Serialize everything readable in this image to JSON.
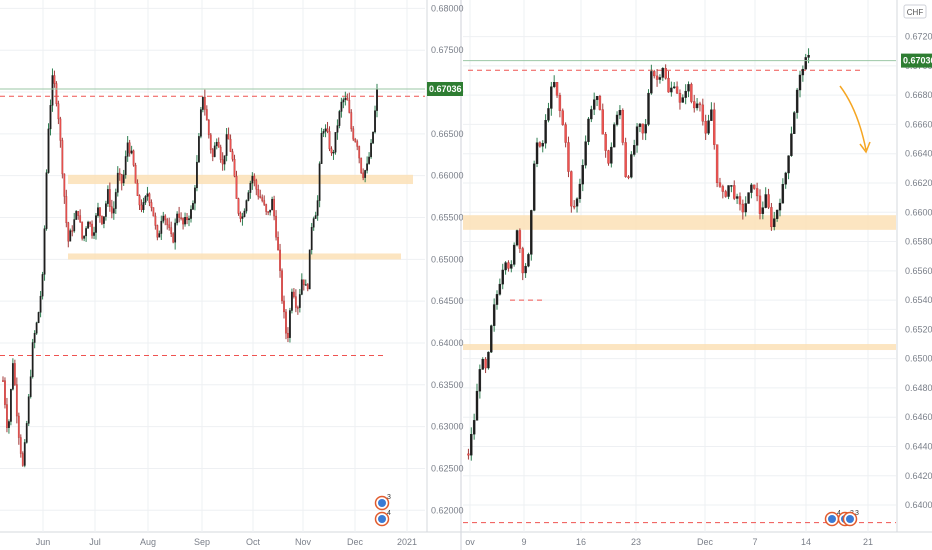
{
  "currency_label": "CHF",
  "icon_names": [
    "event-flag-icon"
  ],
  "event_counts": {
    "left": [
      "3",
      "4"
    ],
    "right": [
      "4",
      "3",
      "3"
    ]
  },
  "colors": {
    "up": "#26a69a",
    "down": "#ef5350",
    "body_dark": "#1e1e1e",
    "zone": "#fbe0b6",
    "dashed": "#ef5350",
    "last": "#2e7d32",
    "arrow": "#f5a623"
  },
  "chart_data": [
    {
      "type": "candlestick",
      "panel": "left",
      "currency": "",
      "last_price": "0.67036",
      "ylim": [
        0.618,
        0.681
      ],
      "y_ticks": [
        "0.68000",
        "0.67500",
        "0.67000",
        "0.66500",
        "0.66000",
        "0.65500",
        "0.65000",
        "0.64500",
        "0.64000",
        "0.63500",
        "0.63000",
        "0.62500",
        "0.62000"
      ],
      "x_ticks": [
        "Jun",
        "Jul",
        "Aug",
        "Sep",
        "Oct",
        "Nov",
        "Dec",
        "2021"
      ],
      "zones": [
        [
          0.659,
          0.6601
        ],
        [
          0.65,
          0.6507
        ]
      ],
      "dashed_levels": [
        0.6695,
        0.6385
      ],
      "series_path": [
        [
          0,
          0.6355
        ],
        [
          5,
          0.629
        ],
        [
          10,
          0.638
        ],
        [
          15,
          0.63
        ],
        [
          20,
          0.625
        ],
        [
          25,
          0.632
        ],
        [
          30,
          0.64
        ],
        [
          35,
          0.643
        ],
        [
          40,
          0.648
        ],
        [
          45,
          0.665
        ],
        [
          50,
          0.672
        ],
        [
          55,
          0.668
        ],
        [
          60,
          0.66
        ],
        [
          65,
          0.652
        ],
        [
          70,
          0.654
        ],
        [
          75,
          0.656
        ],
        [
          80,
          0.652
        ],
        [
          85,
          0.655
        ],
        [
          90,
          0.653
        ],
        [
          95,
          0.656
        ],
        [
          100,
          0.6545
        ],
        [
          105,
          0.658
        ],
        [
          110,
          0.655
        ],
        [
          115,
          0.66
        ],
        [
          120,
          0.659
        ],
        [
          125,
          0.664
        ],
        [
          130,
          0.662
        ],
        [
          135,
          0.657
        ],
        [
          140,
          0.656
        ],
        [
          145,
          0.658
        ],
        [
          150,
          0.656
        ],
        [
          155,
          0.652
        ],
        [
          160,
          0.656
        ],
        [
          165,
          0.654
        ],
        [
          170,
          0.652
        ],
        [
          175,
          0.656
        ],
        [
          180,
          0.654
        ],
        [
          185,
          0.655
        ],
        [
          190,
          0.656
        ],
        [
          195,
          0.662
        ],
        [
          200,
          0.67
        ],
        [
          205,
          0.666
        ],
        [
          210,
          0.662
        ],
        [
          215,
          0.665
        ],
        [
          220,
          0.661
        ],
        [
          225,
          0.665
        ],
        [
          230,
          0.662
        ],
        [
          235,
          0.656
        ],
        [
          240,
          0.655
        ],
        [
          245,
          0.658
        ],
        [
          250,
          0.66
        ],
        [
          255,
          0.658
        ],
        [
          260,
          0.657
        ],
        [
          265,
          0.655
        ],
        [
          270,
          0.657
        ],
        [
          275,
          0.652
        ],
        [
          280,
          0.645
        ],
        [
          285,
          0.64
        ],
        [
          290,
          0.647
        ],
        [
          295,
          0.644
        ],
        [
          300,
          0.648
        ],
        [
          305,
          0.646
        ],
        [
          310,
          0.655
        ],
        [
          315,
          0.656
        ],
        [
          320,
          0.666
        ],
        [
          325,
          0.665
        ],
        [
          330,
          0.662
        ],
        [
          335,
          0.666
        ],
        [
          340,
          0.669
        ],
        [
          345,
          0.669
        ],
        [
          350,
          0.665
        ],
        [
          355,
          0.664
        ],
        [
          360,
          0.66
        ],
        [
          365,
          0.661
        ],
        [
          370,
          0.664
        ],
        [
          375,
          0.67
        ]
      ]
    },
    {
      "type": "candlestick",
      "panel": "right",
      "currency": "CHF",
      "last_price": "0.67036",
      "ylim": [
        0.6385,
        0.6745
      ],
      "y_ticks": [
        "0.67200",
        "0.67000",
        "0.66800",
        "0.66600",
        "0.66400",
        "0.66200",
        "0.66000",
        "0.65800",
        "0.65600",
        "0.65400",
        "0.65200",
        "0.65000",
        "0.64800",
        "0.64600",
        "0.64400",
        "0.64200",
        "0.64000"
      ],
      "x_ticks": [
        "ov",
        "9",
        "16",
        "23",
        "Dec",
        "7",
        "14",
        "21"
      ],
      "zones": [
        [
          0.6588,
          0.6598
        ],
        [
          0.6507,
          0.651
        ]
      ],
      "dashed_levels": [
        0.6697,
        0.654,
        0.6388
      ],
      "series_path": [
        [
          0,
          0.6435
        ],
        [
          6,
          0.646
        ],
        [
          12,
          0.65
        ],
        [
          18,
          0.649
        ],
        [
          24,
          0.653
        ],
        [
          30,
          0.655
        ],
        [
          36,
          0.657
        ],
        [
          42,
          0.656
        ],
        [
          48,
          0.659
        ],
        [
          54,
          0.656
        ],
        [
          60,
          0.657
        ],
        [
          66,
          0.665
        ],
        [
          72,
          0.664
        ],
        [
          78,
          0.667
        ],
        [
          84,
          0.669
        ],
        [
          90,
          0.667
        ],
        [
          96,
          0.665
        ],
        [
          102,
          0.66
        ],
        [
          108,
          0.661
        ],
        [
          114,
          0.664
        ],
        [
          120,
          0.667
        ],
        [
          126,
          0.668
        ],
        [
          132,
          0.666
        ],
        [
          138,
          0.663
        ],
        [
          144,
          0.666
        ],
        [
          150,
          0.667
        ],
        [
          156,
          0.662
        ],
        [
          162,
          0.664
        ],
        [
          168,
          0.666
        ],
        [
          174,
          0.665
        ],
        [
          180,
          0.67
        ],
        [
          186,
          0.669
        ],
        [
          192,
          0.67
        ],
        [
          198,
          0.668
        ],
        [
          204,
          0.669
        ],
        [
          210,
          0.667
        ],
        [
          216,
          0.669
        ],
        [
          222,
          0.667
        ],
        [
          228,
          0.668
        ],
        [
          234,
          0.665
        ],
        [
          240,
          0.667
        ],
        [
          246,
          0.662
        ],
        [
          252,
          0.661
        ],
        [
          258,
          0.662
        ],
        [
          264,
          0.661
        ],
        [
          270,
          0.66
        ],
        [
          276,
          0.661
        ],
        [
          282,
          0.662
        ],
        [
          288,
          0.66
        ],
        [
          294,
          0.661
        ],
        [
          300,
          0.659
        ],
        [
          306,
          0.6605
        ],
        [
          312,
          0.662
        ],
        [
          318,
          0.665
        ],
        [
          324,
          0.668
        ],
        [
          330,
          0.67
        ],
        [
          336,
          0.6705
        ]
      ]
    }
  ]
}
